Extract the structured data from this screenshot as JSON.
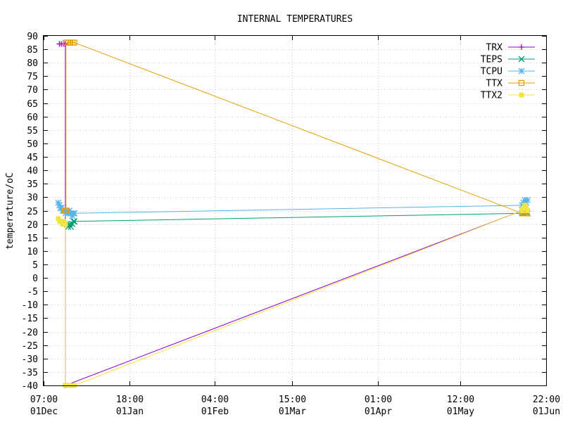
{
  "chart_data": {
    "type": "line",
    "title": "INTERNAL TEMPERATURES",
    "xlabel": "",
    "ylabel": "temperature/oC",
    "x_ticks": [
      {
        "top": "07:00",
        "bottom": "01Dec"
      },
      {
        "top": "18:00",
        "bottom": "01Jan"
      },
      {
        "top": "04:00",
        "bottom": "01Feb"
      },
      {
        "top": "15:00",
        "bottom": "01Mar"
      },
      {
        "top": "01:00",
        "bottom": "01Apr"
      },
      {
        "top": "12:00",
        "bottom": "01May"
      },
      {
        "top": "22:00",
        "bottom": "01Jun"
      }
    ],
    "x_tick_positions": [
      0,
      31.46,
      62.88,
      91.33,
      122.75,
      153.21,
      184.63
    ],
    "xlim": [
      0,
      184.63
    ],
    "ylim": [
      -40,
      90
    ],
    "y_ticks": [
      90,
      85,
      80,
      75,
      70,
      65,
      60,
      55,
      50,
      45,
      40,
      35,
      30,
      25,
      20,
      15,
      10,
      5,
      0,
      -5,
      -10,
      -15,
      -20,
      -25,
      -30,
      -35,
      -40
    ],
    "grid": true,
    "legend_position": "top-right",
    "series": [
      {
        "name": "TRX",
        "color": "#9400d3",
        "marker": "plus",
        "x": [
          5.8,
          6.5,
          7.2,
          7.8,
          8.0,
          8.0,
          175.8,
          176.8,
          177.6
        ],
        "y": [
          87,
          87,
          87,
          87,
          87,
          -40,
          25,
          25,
          25
        ]
      },
      {
        "name": "TEPS",
        "color": "#009e73",
        "marker": "cross",
        "x": [
          8.5,
          9.0,
          9.5,
          10.0,
          10.5,
          11.0,
          11.3,
          175.8,
          176.5,
          177.2,
          177.8
        ],
        "y": [
          20,
          19,
          20,
          19,
          20,
          21,
          21,
          24,
          24,
          25,
          24
        ]
      },
      {
        "name": "TCPU",
        "color": "#56b4e9",
        "marker": "star",
        "x": [
          5.4,
          5.8,
          6.2,
          6.6,
          7.0,
          7.5,
          8.0,
          8.5,
          9.0,
          9.5,
          10.0,
          10.5,
          11.0,
          11.3,
          175.8,
          176.3,
          176.8,
          177.3,
          177.8
        ],
        "y": [
          28,
          27,
          26,
          26,
          25,
          25,
          24,
          25,
          24,
          25,
          24,
          23,
          24,
          24,
          27,
          28,
          29,
          28,
          29
        ]
      },
      {
        "name": "TTX",
        "color": "#e69f00",
        "marker": "open-square",
        "x": [
          7.8,
          8.2,
          8.2,
          9.0,
          9.8,
          10.6,
          11.3,
          175.8,
          176.4,
          177.0,
          177.6
        ],
        "y": [
          25,
          25,
          87.5,
          87.5,
          87.5,
          87.5,
          87.5,
          24,
          24,
          24,
          24
        ]
      },
      {
        "name": "TTX2",
        "color": "#f0e442",
        "marker": "filled-square",
        "x": [
          5.4,
          5.9,
          6.4,
          6.9,
          7.4,
          7.9,
          8.0,
          8.0,
          8.7,
          9.4,
          10.1,
          10.8,
          11.3,
          175.8,
          176.3,
          176.8,
          177.3,
          177.8
        ],
        "y": [
          22,
          21,
          21,
          20,
          21,
          20,
          20,
          -40,
          -40,
          -40,
          -40,
          -40,
          -40,
          25,
          26,
          27,
          26,
          25
        ]
      }
    ]
  }
}
